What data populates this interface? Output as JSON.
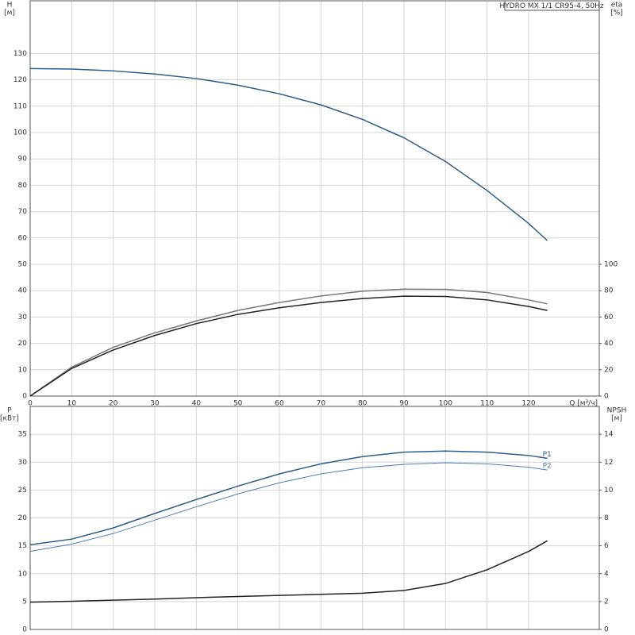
{
  "chart_data": [
    {
      "type": "line",
      "label": "HYDRO MX 1/1 CR95-4, 50Hz",
      "y_label": "H",
      "y_unit": "[м]",
      "y2_label": "eta",
      "y2_unit": "[%]",
      "x_label": "Q [м³/ч]",
      "xlim": [
        0,
        137
      ],
      "xticks": [
        0,
        10,
        20,
        30,
        40,
        50,
        60,
        70,
        80,
        90,
        100,
        110,
        120
      ],
      "ylim": [
        0,
        150
      ],
      "yticks": [
        0,
        10,
        20,
        30,
        40,
        50,
        60,
        70,
        80,
        90,
        100,
        110,
        120,
        130
      ],
      "y2lim": [
        0,
        300
      ],
      "y2ticks": [
        0,
        20,
        40,
        60,
        80,
        100
      ],
      "grid": true,
      "x": [
        0,
        10,
        20,
        30,
        40,
        50,
        60,
        70,
        80,
        90,
        100,
        110,
        120,
        124.5
      ],
      "series": [
        {
          "color": "#2b5c8a",
          "values": [
            124.3,
            124.1,
            123.4,
            122.2,
            120.5,
            118,
            114.7,
            110.5,
            105,
            98,
            89,
            78,
            65.5,
            59
          ]
        },
        {
          "color": "#777777",
          "axis": "y2",
          "values": [
            0,
            22,
            37,
            48,
            57,
            65,
            71,
            76,
            79.6,
            81.2,
            81,
            78.6,
            73,
            70
          ]
        },
        {
          "color": "#222222",
          "axis": "y2",
          "values": [
            0,
            21,
            35,
            46,
            55,
            62,
            67,
            71,
            74,
            75.8,
            75.6,
            73,
            68,
            65
          ]
        }
      ]
    },
    {
      "type": "line",
      "y_label": "P",
      "y_unit": "[кВт]",
      "y2_label": "NPSH",
      "y2_unit": "[м]",
      "xlim": [
        0,
        137
      ],
      "ylim": [
        0,
        40
      ],
      "yticks": [
        0,
        5,
        10,
        15,
        20,
        25,
        30,
        35
      ],
      "y2lim": [
        0,
        16
      ],
      "y2ticks": [
        0,
        2,
        4,
        6,
        8,
        10,
        12,
        14
      ],
      "grid": true,
      "x": [
        0,
        10,
        20,
        30,
        40,
        50,
        60,
        70,
        80,
        90,
        100,
        110,
        120,
        124.5
      ],
      "series": [
        {
          "name": "P1",
          "color": "#2b5c8a",
          "values": [
            15.2,
            16.2,
            18.2,
            20.8,
            23.3,
            25.7,
            27.9,
            29.7,
            31,
            31.8,
            32,
            31.8,
            31.2,
            30.7
          ]
        },
        {
          "name": "P2",
          "color": "#4a7fb5",
          "values": [
            14,
            15.3,
            17.2,
            19.6,
            22,
            24.3,
            26.3,
            27.9,
            29,
            29.6,
            29.9,
            29.7,
            29.1,
            28.6
          ]
        },
        {
          "color": "#222222",
          "axis": "y2",
          "values": [
            1.96,
            2.02,
            2.1,
            2.18,
            2.28,
            2.36,
            2.44,
            2.52,
            2.6,
            2.8,
            3.3,
            4.28,
            5.6,
            6.36
          ]
        }
      ]
    }
  ]
}
